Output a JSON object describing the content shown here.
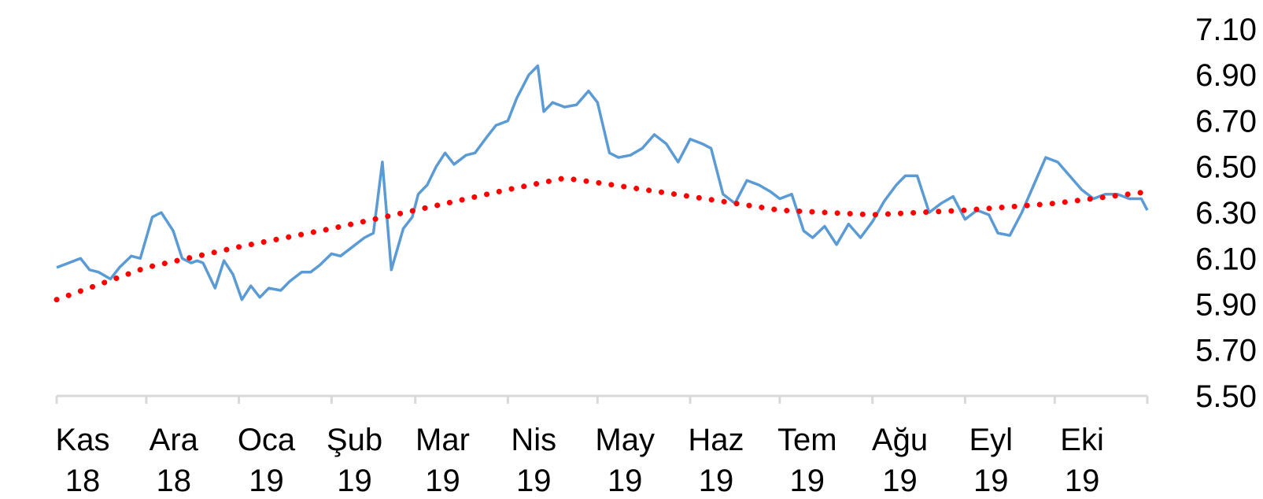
{
  "chart_data": {
    "type": "line",
    "title": "",
    "xlabel": "",
    "ylabel": "",
    "ylim": [
      5.5,
      7.1
    ],
    "y_ticks": [
      "7.10",
      "6.90",
      "6.70",
      "6.50",
      "6.30",
      "6.10",
      "5.90",
      "5.70",
      "5.50"
    ],
    "y_axis_position": "right",
    "grid": false,
    "legend": "none",
    "x_ticks": [
      {
        "month": "Kas",
        "year": "18"
      },
      {
        "month": "Ara",
        "year": "18"
      },
      {
        "month": "Oca",
        "year": "19"
      },
      {
        "month": "Şub",
        "year": "19"
      },
      {
        "month": "Mar",
        "year": "19"
      },
      {
        "month": "Nis",
        "year": "19"
      },
      {
        "month": "May",
        "year": "19"
      },
      {
        "month": "Haz",
        "year": "19"
      },
      {
        "month": "Tem",
        "year": "19"
      },
      {
        "month": "Ağu",
        "year": "19"
      },
      {
        "month": "Eyl",
        "year": "19"
      },
      {
        "month": "Eki",
        "year": "19"
      }
    ],
    "series": [
      {
        "style": "solid",
        "color": "#5B9BD5",
        "x": [
          "2018-11-01",
          "2018-11-05",
          "2018-11-09",
          "2018-11-12",
          "2018-11-15",
          "2018-11-19",
          "2018-11-22",
          "2018-11-26",
          "2018-11-29",
          "2018-12-03",
          "2018-12-06",
          "2018-12-08",
          "2018-12-10",
          "2018-12-13",
          "2018-12-16",
          "2018-12-18",
          "2018-12-20",
          "2018-12-24",
          "2018-12-27",
          "2018-12-30",
          "2019-01-02",
          "2019-01-05",
          "2019-01-08",
          "2019-01-11",
          "2019-01-15",
          "2019-01-18",
          "2019-01-22",
          "2019-01-25",
          "2019-01-28",
          "2019-02-01",
          "2019-02-04",
          "2019-02-08",
          "2019-02-12",
          "2019-02-15",
          "2019-02-18",
          "2019-02-21",
          "2019-02-25",
          "2019-02-28",
          "2019-03-02",
          "2019-03-05",
          "2019-03-08",
          "2019-03-11",
          "2019-03-14",
          "2019-03-18",
          "2019-03-21",
          "2019-03-25",
          "2019-03-28",
          "2019-04-01",
          "2019-04-04",
          "2019-04-08",
          "2019-04-11",
          "2019-04-13",
          "2019-04-16",
          "2019-04-20",
          "2019-04-24",
          "2019-04-28",
          "2019-05-01",
          "2019-05-05",
          "2019-05-08",
          "2019-05-12",
          "2019-05-16",
          "2019-05-20",
          "2019-05-24",
          "2019-05-28",
          "2019-06-01",
          "2019-06-05",
          "2019-06-08",
          "2019-06-12",
          "2019-06-16",
          "2019-06-20",
          "2019-06-24",
          "2019-06-28",
          "2019-07-01",
          "2019-07-05",
          "2019-07-09",
          "2019-07-12",
          "2019-07-16",
          "2019-07-20",
          "2019-07-24",
          "2019-07-28",
          "2019-08-01",
          "2019-08-05",
          "2019-08-09",
          "2019-08-12",
          "2019-08-16",
          "2019-08-20",
          "2019-08-24",
          "2019-08-28",
          "2019-09-01",
          "2019-09-05",
          "2019-09-09",
          "2019-09-12",
          "2019-09-16",
          "2019-09-20",
          "2019-09-24",
          "2019-09-28",
          "2019-10-02",
          "2019-10-06",
          "2019-10-10",
          "2019-10-14",
          "2019-10-18",
          "2019-10-22",
          "2019-10-26",
          "2019-10-30",
          "2019-11-01"
        ],
        "y": [
          6.06,
          6.08,
          6.1,
          6.05,
          6.04,
          6.01,
          6.06,
          6.11,
          6.1,
          6.28,
          6.3,
          6.26,
          6.22,
          6.1,
          6.08,
          6.09,
          6.08,
          5.97,
          6.09,
          6.03,
          5.92,
          5.98,
          5.93,
          5.97,
          5.96,
          6.0,
          6.04,
          6.04,
          6.07,
          6.12,
          6.11,
          6.15,
          6.19,
          6.21,
          6.52,
          6.05,
          6.23,
          6.28,
          6.38,
          6.42,
          6.5,
          6.56,
          6.51,
          6.55,
          6.56,
          6.63,
          6.68,
          6.7,
          6.8,
          6.9,
          6.94,
          6.74,
          6.78,
          6.76,
          6.77,
          6.83,
          6.78,
          6.56,
          6.54,
          6.55,
          6.58,
          6.64,
          6.6,
          6.52,
          6.62,
          6.6,
          6.58,
          6.38,
          6.34,
          6.44,
          6.42,
          6.39,
          6.36,
          6.38,
          6.22,
          6.19,
          6.24,
          6.16,
          6.25,
          6.19,
          6.26,
          6.35,
          6.42,
          6.46,
          6.46,
          6.3,
          6.34,
          6.37,
          6.27,
          6.31,
          6.29,
          6.21,
          6.2,
          6.3,
          6.42,
          6.54,
          6.52,
          6.46,
          6.4,
          6.36,
          6.38,
          6.38,
          6.36,
          6.36,
          6.31
        ]
      },
      {
        "style": "dotted",
        "color": "#FF0000",
        "x": [
          "2018-11-01",
          "2018-12-01",
          "2019-01-01",
          "2019-02-01",
          "2019-03-01",
          "2019-04-01",
          "2019-04-20",
          "2019-05-01",
          "2019-06-01",
          "2019-07-01",
          "2019-08-01",
          "2019-09-01",
          "2019-10-01",
          "2019-11-01"
        ],
        "y": [
          5.92,
          6.06,
          6.15,
          6.23,
          6.31,
          6.4,
          6.45,
          6.43,
          6.37,
          6.31,
          6.29,
          6.31,
          6.34,
          6.39
        ]
      }
    ]
  }
}
